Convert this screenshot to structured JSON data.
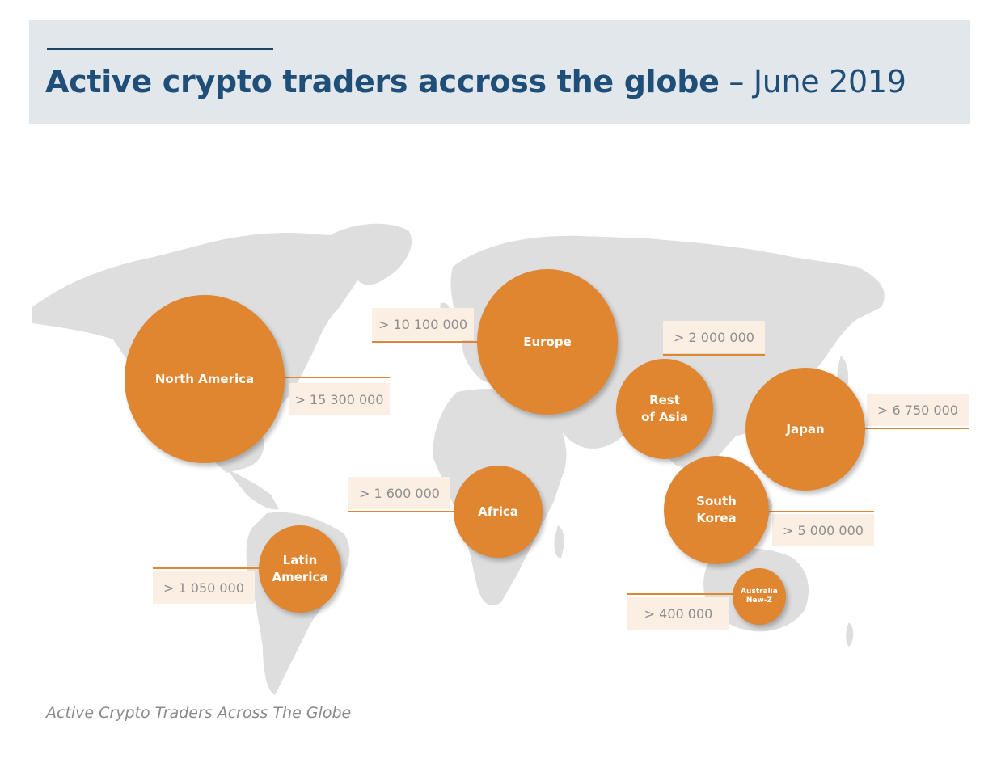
{
  "header": {
    "title_bold": "Active crypto traders accross the globe",
    "title_rest": " – June 2019"
  },
  "caption": "Active Crypto Traders Across The Globe",
  "colors": {
    "bubble": "#e08530",
    "label_bg": "#fbeee3",
    "map_land": "#dedede",
    "header_bg": "#e1e7ea",
    "title": "#1f4e79"
  },
  "regions": [
    {
      "name": "North America",
      "traders": "> 15 300 000"
    },
    {
      "name": "Europe",
      "traders": "> 10 100 000"
    },
    {
      "name": "Rest\nof Asia",
      "traders": "> 2 000 000"
    },
    {
      "name": "Japan",
      "traders": "> 6 750 000"
    },
    {
      "name": "Africa",
      "traders": "> 1 600 000"
    },
    {
      "name": "South\nKorea",
      "traders": "> 5 000 000"
    },
    {
      "name": "Latin\nAmerica",
      "traders": "> 1 050 000"
    },
    {
      "name": "Australia\nNew-Z",
      "traders": "> 400 000"
    }
  ]
}
